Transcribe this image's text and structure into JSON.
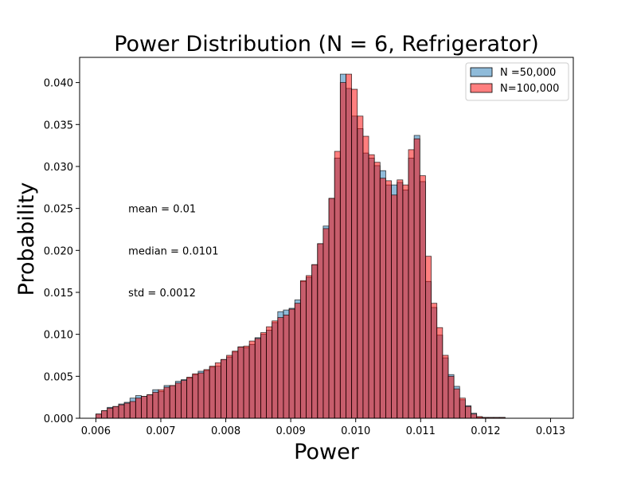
{
  "chart_data": {
    "type": "bar",
    "title": "Power Distribution (N = 6, Refrigerator)",
    "xlabel": "Power",
    "ylabel": "Probability",
    "xlim": [
      0.00575,
      0.01335
    ],
    "ylim": [
      0,
      0.043
    ],
    "x_ticks": [
      "0.006",
      "0.007",
      "0.008",
      "0.009",
      "0.010",
      "0.011",
      "0.012",
      "0.013"
    ],
    "x_tick_values": [
      0.006,
      0.007,
      0.008,
      0.009,
      0.01,
      0.011,
      0.012,
      0.013
    ],
    "y_ticks": [
      "0.000",
      "0.005",
      "0.010",
      "0.015",
      "0.020",
      "0.025",
      "0.030",
      "0.035",
      "0.040"
    ],
    "y_tick_values": [
      0,
      0.005,
      0.01,
      0.015,
      0.02,
      0.025,
      0.03,
      0.035,
      0.04
    ],
    "legend_position": "top-right",
    "grid": false,
    "bin_edges": [
      0.006,
      0.0060875,
      0.006175,
      0.0062625,
      0.00635,
      0.0064375,
      0.006525,
      0.0066125,
      0.0067,
      0.0067875,
      0.006875,
      0.0069625,
      0.00705,
      0.0071375,
      0.007225,
      0.0073125,
      0.0074,
      0.0074875,
      0.007575,
      0.0076625,
      0.00775,
      0.0078375,
      0.007925,
      0.0080125,
      0.0081,
      0.0081875,
      0.008275,
      0.0083625,
      0.00845,
      0.0085375,
      0.008625,
      0.0087125,
      0.0088,
      0.0088875,
      0.008975,
      0.0090625,
      0.00915,
      0.0092375,
      0.009325,
      0.0094125,
      0.0095,
      0.0095875,
      0.009675,
      0.0097625,
      0.00985,
      0.0099375,
      0.010025,
      0.0101125,
      0.0102,
      0.0102875,
      0.010375,
      0.0104625,
      0.01055,
      0.0106375,
      0.010725,
      0.0108125,
      0.0109,
      0.0109875,
      0.011075,
      0.0111625,
      0.01125,
      0.0113375,
      0.011425,
      0.0115125,
      0.0116,
      0.0116875,
      0.011775,
      0.0118625,
      0.01195,
      0.0120375,
      0.012125,
      0.0122125,
      0.0123
    ],
    "series": [
      {
        "name": "N =50,000",
        "color": "#1f77b4",
        "values": [
          0.0005,
          0.0009,
          0.0013,
          0.0014,
          0.0017,
          0.0019,
          0.0024,
          0.0027,
          0.0026,
          0.0028,
          0.0034,
          0.0032,
          0.0039,
          0.0039,
          0.0044,
          0.0046,
          0.0048,
          0.0052,
          0.0056,
          0.0057,
          0.0061,
          0.0062,
          0.007,
          0.0073,
          0.0079,
          0.0085,
          0.0084,
          0.0088,
          0.0096,
          0.01,
          0.0105,
          0.0114,
          0.0127,
          0.0129,
          0.0131,
          0.0141,
          0.0163,
          0.0168,
          0.0183,
          0.0208,
          0.0229,
          0.0262,
          0.031,
          0.041,
          0.0393,
          0.036,
          0.0345,
          0.0316,
          0.031,
          0.0301,
          0.0295,
          0.0278,
          0.0278,
          0.0281,
          0.0272,
          0.031,
          0.0337,
          0.0282,
          0.0163,
          0.0132,
          0.0099,
          0.0072,
          0.0052,
          0.0038,
          0.0022,
          0.0015,
          0.0006,
          0.0001,
          0.0001,
          0.0001,
          0.0001,
          0.0001
        ]
      },
      {
        "name": "N=100,000",
        "color": "#ff0000",
        "values": [
          0.0005,
          0.0009,
          0.0012,
          0.0014,
          0.0016,
          0.0018,
          0.002,
          0.0024,
          0.0026,
          0.0028,
          0.0031,
          0.0034,
          0.0037,
          0.0039,
          0.0042,
          0.0045,
          0.0049,
          0.0053,
          0.0054,
          0.0058,
          0.0062,
          0.0066,
          0.007,
          0.0075,
          0.008,
          0.0085,
          0.0086,
          0.0092,
          0.0095,
          0.0102,
          0.0109,
          0.0116,
          0.012,
          0.0123,
          0.013,
          0.0137,
          0.0164,
          0.017,
          0.0183,
          0.0208,
          0.0226,
          0.0262,
          0.0318,
          0.04,
          0.041,
          0.0392,
          0.036,
          0.0336,
          0.0314,
          0.0305,
          0.0286,
          0.0283,
          0.0266,
          0.0284,
          0.0278,
          0.032,
          0.0333,
          0.0289,
          0.0193,
          0.0137,
          0.0108,
          0.0075,
          0.005,
          0.0035,
          0.0024,
          0.0014,
          0.0005,
          0.0002,
          0.0001,
          0.0001,
          0.0001,
          0.0001
        ]
      }
    ],
    "annotations": [
      {
        "text": "mean = 0.01",
        "x": 0.0065,
        "y": 0.025
      },
      {
        "text": "median = 0.0101",
        "x": 0.0065,
        "y": 0.02
      },
      {
        "text": "std = 0.0012",
        "x": 0.0065,
        "y": 0.015
      }
    ]
  }
}
